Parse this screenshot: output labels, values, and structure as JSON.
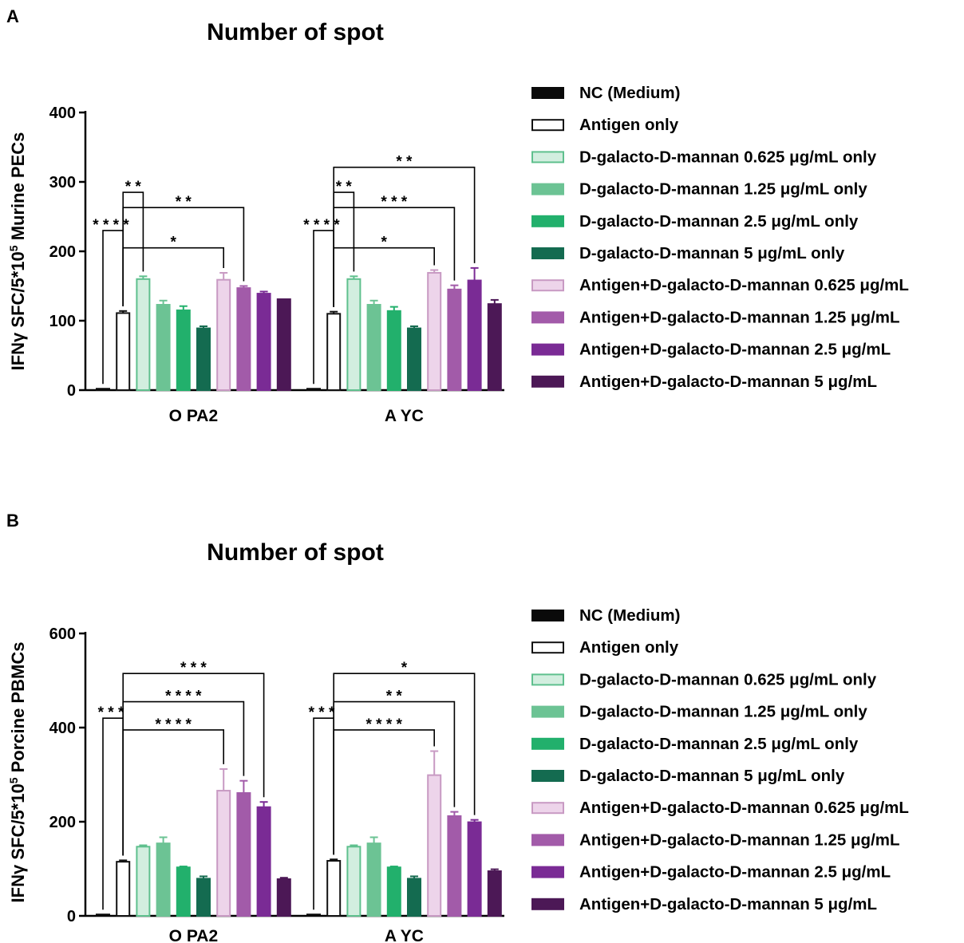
{
  "chart_data": [
    {
      "panel_label": "A",
      "type": "bar",
      "title": "Number of spot",
      "ylabel": "IFNγ SFC/5*10",
      "ylabel_sup": "5",
      "ylabel_suffix": " Murine PECs",
      "ylim": [
        0,
        400
      ],
      "yticks": [
        0,
        100,
        200,
        300,
        400
      ],
      "categories": [
        "O PA2",
        "A YC"
      ],
      "series": [
        {
          "name": "NC (Medium)",
          "color": "#0a0a0a",
          "values": [
            2,
            2
          ],
          "err": [
            0,
            0
          ]
        },
        {
          "name": "Antigen only",
          "color": "#ffffff",
          "edge": "#111111",
          "values": [
            111,
            110
          ],
          "err": [
            3,
            3
          ]
        },
        {
          "name": "D-galacto-D-mannan 0.625 μg/mL  only",
          "color": "#d2eedf",
          "edge": "#5fc08e",
          "values": [
            160,
            160
          ],
          "err": [
            4,
            4
          ]
        },
        {
          "name": "D-galacto-D-mannan 1.25 μg/mL  only",
          "color": "#6cc394",
          "values": [
            123,
            123
          ],
          "err": [
            6,
            6
          ]
        },
        {
          "name": "D-galacto-D-mannan 2.5 μg/mL  only",
          "color": "#22b06c",
          "values": [
            115,
            114
          ],
          "err": [
            6,
            6
          ]
        },
        {
          "name": "D-galacto-D-mannan 5 μg/mL  only",
          "color": "#146b50",
          "values": [
            89,
            89
          ],
          "err": [
            3,
            3
          ]
        },
        {
          "name": "Antigen+D-galacto-D-mannan 0.625 μg/mL",
          "color": "#edd4ea",
          "edge": "#c89ac3",
          "values": [
            159,
            169
          ],
          "err": [
            10,
            4
          ]
        },
        {
          "name": "Antigen+D-galacto-D-mannan 1.25 μg/mL",
          "color": "#a25ba9",
          "values": [
            147,
            145
          ],
          "err": [
            3,
            6
          ]
        },
        {
          "name": "Antigen+D-galacto-D-mannan 2.5 μg/mL",
          "color": "#7a2b95",
          "values": [
            139,
            158
          ],
          "err": [
            3,
            18
          ]
        },
        {
          "name": "Antigen+D-galacto-D-mannan 5 μg/mL",
          "color": "#4c1856",
          "values": [
            131,
            124
          ],
          "err": [
            0,
            6
          ]
        }
      ],
      "significance": [
        {
          "category": "O PA2",
          "from": 0,
          "to": 1,
          "label": "****"
        },
        {
          "category": "O PA2",
          "from": 1,
          "to": 2,
          "label": "**"
        },
        {
          "category": "O PA2",
          "from": 1,
          "to": 6,
          "label": "*"
        },
        {
          "category": "O PA2",
          "from": 1,
          "to": 7,
          "label": "**"
        },
        {
          "category": "A YC",
          "from": 0,
          "to": 1,
          "label": "****"
        },
        {
          "category": "A YC",
          "from": 1,
          "to": 2,
          "label": "**"
        },
        {
          "category": "A YC",
          "from": 1,
          "to": 6,
          "label": "*"
        },
        {
          "category": "A YC",
          "from": 1,
          "to": 7,
          "label": "***"
        },
        {
          "category": "A YC",
          "from": 1,
          "to": 8,
          "label": "**"
        }
      ]
    },
    {
      "panel_label": "B",
      "type": "bar",
      "title": "Number of spot",
      "ylabel": "IFNγ SFC/5*10",
      "ylabel_sup": "5",
      "ylabel_suffix": " Porcine PBMCs",
      "ylim": [
        0,
        600
      ],
      "yticks": [
        0,
        200,
        400,
        600
      ],
      "categories": [
        "O PA2",
        "A YC"
      ],
      "series": [
        {
          "name": "NC (Medium)",
          "color": "#0a0a0a",
          "values": [
            3,
            3
          ],
          "err": [
            0,
            0
          ]
        },
        {
          "name": "Antigen only",
          "color": "#ffffff",
          "edge": "#111111",
          "values": [
            115,
            117
          ],
          "err": [
            3,
            3
          ]
        },
        {
          "name": "D-galacto-D-mannan 0.625 μg/mL only",
          "color": "#d2eedf",
          "edge": "#5fc08e",
          "values": [
            147,
            147
          ],
          "err": [
            3,
            3
          ]
        },
        {
          "name": "D-galacto-D-mannan 1.25 μg/mL only",
          "color": "#6cc394",
          "values": [
            154,
            154
          ],
          "err": [
            13,
            13
          ]
        },
        {
          "name": "D-galacto-D-mannan 2.5 μg/mL only",
          "color": "#22b06c",
          "values": [
            103,
            103
          ],
          "err": [
            2,
            2
          ]
        },
        {
          "name": "D-galacto-D-mannan 5 μg/mL only",
          "color": "#146b50",
          "values": [
            79,
            79
          ],
          "err": [
            5,
            5
          ]
        },
        {
          "name": "Antigen+D-galacto-D-mannan 0.625 μg/mL",
          "color": "#edd4ea",
          "edge": "#c89ac3",
          "values": [
            266,
            299
          ],
          "err": [
            46,
            51
          ]
        },
        {
          "name": "Antigen+D-galacto-D-mannan 1.25 μg/mL",
          "color": "#a25ba9",
          "values": [
            261,
            212
          ],
          "err": [
            26,
            9
          ]
        },
        {
          "name": "Antigen+D-galacto-D-mannan 2.5 μg/mL",
          "color": "#7a2b95",
          "values": [
            231,
            199
          ],
          "err": [
            11,
            5
          ]
        },
        {
          "name": "Antigen+D-galacto-D-mannan 5 μg/mL",
          "color": "#4c1856",
          "values": [
            78,
            95
          ],
          "err": [
            3,
            4
          ]
        }
      ],
      "significance": [
        {
          "category": "O PA2",
          "from": 0,
          "to": 1,
          "label": "***"
        },
        {
          "category": "O PA2",
          "from": 1,
          "to": 6,
          "label": "****"
        },
        {
          "category": "O PA2",
          "from": 1,
          "to": 7,
          "label": "****"
        },
        {
          "category": "O PA2",
          "from": 1,
          "to": 8,
          "label": "***"
        },
        {
          "category": "A YC",
          "from": 0,
          "to": 1,
          "label": "***"
        },
        {
          "category": "A YC",
          "from": 1,
          "to": 6,
          "label": "****"
        },
        {
          "category": "A YC",
          "from": 1,
          "to": 7,
          "label": "**"
        },
        {
          "category": "A YC",
          "from": 1,
          "to": 8,
          "label": "*"
        }
      ]
    }
  ]
}
